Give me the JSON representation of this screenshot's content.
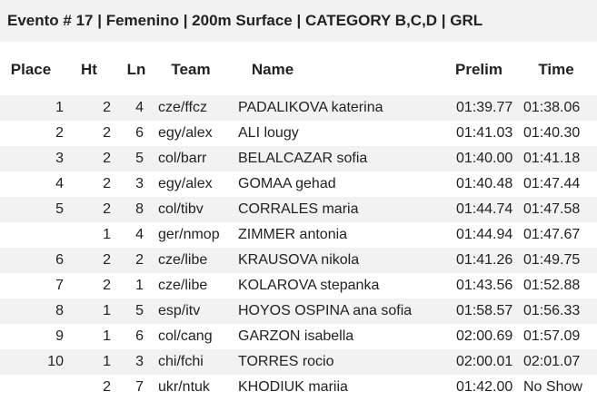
{
  "header": {
    "title": "Evento # 17 | Femenino | 200m Surface | CATEGORY B,C,D | GRL"
  },
  "table": {
    "columns": [
      "Place",
      "Ht",
      "Ln",
      "Team",
      "Name",
      "Prelim",
      "Time"
    ],
    "rows": [
      [
        1,
        2,
        4,
        "cze/ffcz",
        "PADALIKOVA katerina",
        "01:39.77",
        "01:38.06"
      ],
      [
        2,
        2,
        6,
        "egy/alex",
        "ALI lougy",
        "01:41.03",
        "01:40.30"
      ],
      [
        3,
        2,
        5,
        "col/barr",
        "BELALCAZAR sofia",
        "01:40.00",
        "01:41.18"
      ],
      [
        4,
        2,
        3,
        "egy/alex",
        "GOMAA gehad",
        "01:40.48",
        "01:47.44"
      ],
      [
        5,
        2,
        8,
        "col/tibv",
        "CORRALES maria",
        "01:44.74",
        "01:47.58"
      ],
      [
        null,
        1,
        4,
        "ger/nmop",
        "ZIMMER antonia",
        "01:44.94",
        "01:47.67"
      ],
      [
        6,
        2,
        2,
        "cze/libe",
        "KRAUSOVA nikola",
        "01:41.26",
        "01:49.75"
      ],
      [
        7,
        2,
        1,
        "cze/libe",
        "KOLAROVA stepanka",
        "01:43.56",
        "01:52.88"
      ],
      [
        8,
        1,
        5,
        "esp/itv",
        "HOYOS OSPINA ana sofia",
        "01:58.57",
        "01:56.33"
      ],
      [
        9,
        1,
        6,
        "col/cang",
        "GARZON isabella",
        "02:00.69",
        "01:57.09"
      ],
      [
        10,
        1,
        3,
        "chi/fchi",
        "TORRES rocio",
        "02:00.01",
        "02:01.07"
      ],
      [
        null,
        2,
        7,
        "ukr/ntuk",
        "KHODIUK mariia",
        "01:42.00",
        "No Show"
      ]
    ]
  }
}
